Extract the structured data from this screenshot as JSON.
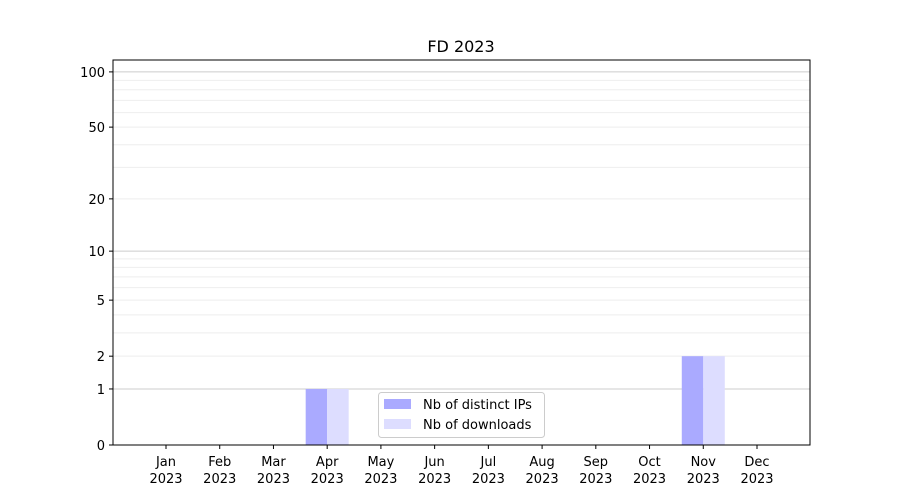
{
  "chart_data": {
    "type": "bar",
    "title": "FD 2023",
    "xlabel": "",
    "ylabel": "",
    "yscale": "log1p",
    "ylim": [
      0,
      116
    ],
    "yticks": [
      0,
      1,
      2,
      5,
      10,
      20,
      50,
      100
    ],
    "grid": true,
    "legend_position": "lower-center",
    "categories": [
      "Jan\n2023",
      "Feb\n2023",
      "Mar\n2023",
      "Apr\n2023",
      "May\n2023",
      "Jun\n2023",
      "Jul\n2023",
      "Aug\n2023",
      "Sep\n2023",
      "Oct\n2023",
      "Nov\n2023",
      "Dec\n2023"
    ],
    "series": [
      {
        "name": "Nb of distinct IPs",
        "color": "#aaaaff",
        "values": [
          0,
          0,
          0,
          1,
          0,
          0,
          0,
          0,
          0,
          0,
          2,
          0
        ]
      },
      {
        "name": "Nb of downloads",
        "color": "#ddddff",
        "values": [
          0,
          0,
          0,
          1,
          0,
          0,
          0,
          0,
          0,
          0,
          2,
          0
        ]
      }
    ]
  }
}
